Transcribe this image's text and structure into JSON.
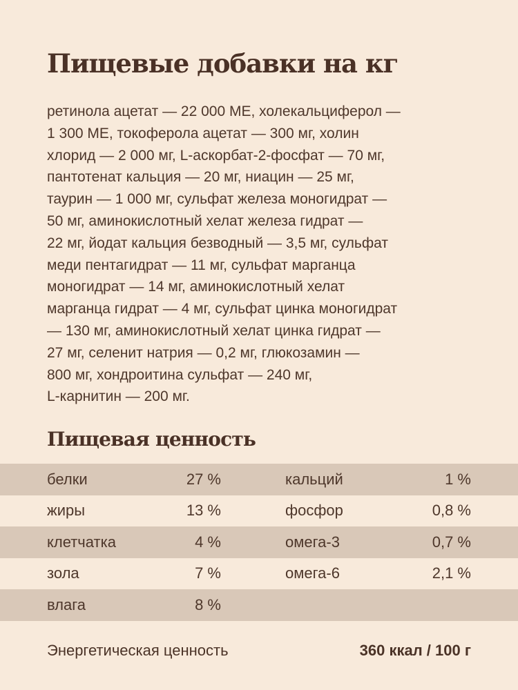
{
  "title": "Пищевые добавки на кг",
  "additives_lines": [
    "ретинола ацетат — 22 000 МЕ, холекальциферол —",
    "1 300 МЕ, токоферола ацетат — 300 мг, холин",
    "хлорид — 2 000 мг, L-аскорбат-2-фосфат — 70 мг,",
    "пантотенат кальция — 20 мг, ниацин — 25 мг,",
    "таурин — 1 000 мг, сульфат железа моногидрат —",
    "50 мг, аминокислотный хелат железа гидрат —",
    "22 мг, йодат кальция безводный — 3,5 мг, сульфат",
    "меди пентагидрат — 11 мг, сульфат марганца",
    "моногидрат — 14 мг, аминокислотный хелат",
    "марганца гидрат — 4 мг, сульфат цинка моногидрат",
    "— 130 мг, аминокислотный хелат цинка гидрат —",
    "27 мг, селенит натрия — 0,2 мг, глюкозамин —",
    "800 мг, хондроитина сульфат — 240 мг,",
    "L-карнитин — 200 мг."
  ],
  "nutrition_title": "Пищевая ценность",
  "nutrition_rows": [
    {
      "name1": "белки",
      "value1": "27 %",
      "name2": "кальций",
      "value2": "1 %"
    },
    {
      "name1": "жиры",
      "value1": "13 %",
      "name2": "фосфор",
      "value2": "0,8 %"
    },
    {
      "name1": "клетчатка",
      "value1": "4 %",
      "name2": "омега-3",
      "value2": "0,7 %"
    },
    {
      "name1": "зола",
      "value1": "7 %",
      "name2": "омега-6",
      "value2": "2,1 %"
    },
    {
      "name1": "влага",
      "value1": "8 %",
      "name2": "",
      "value2": ""
    }
  ],
  "energy": {
    "label": "Энергетическая ценность",
    "value": "360 ккал / 100 г"
  },
  "colors": {
    "background": "#f8eadb",
    "stripe": "#d9c8b8",
    "text": "#4b3327"
  }
}
